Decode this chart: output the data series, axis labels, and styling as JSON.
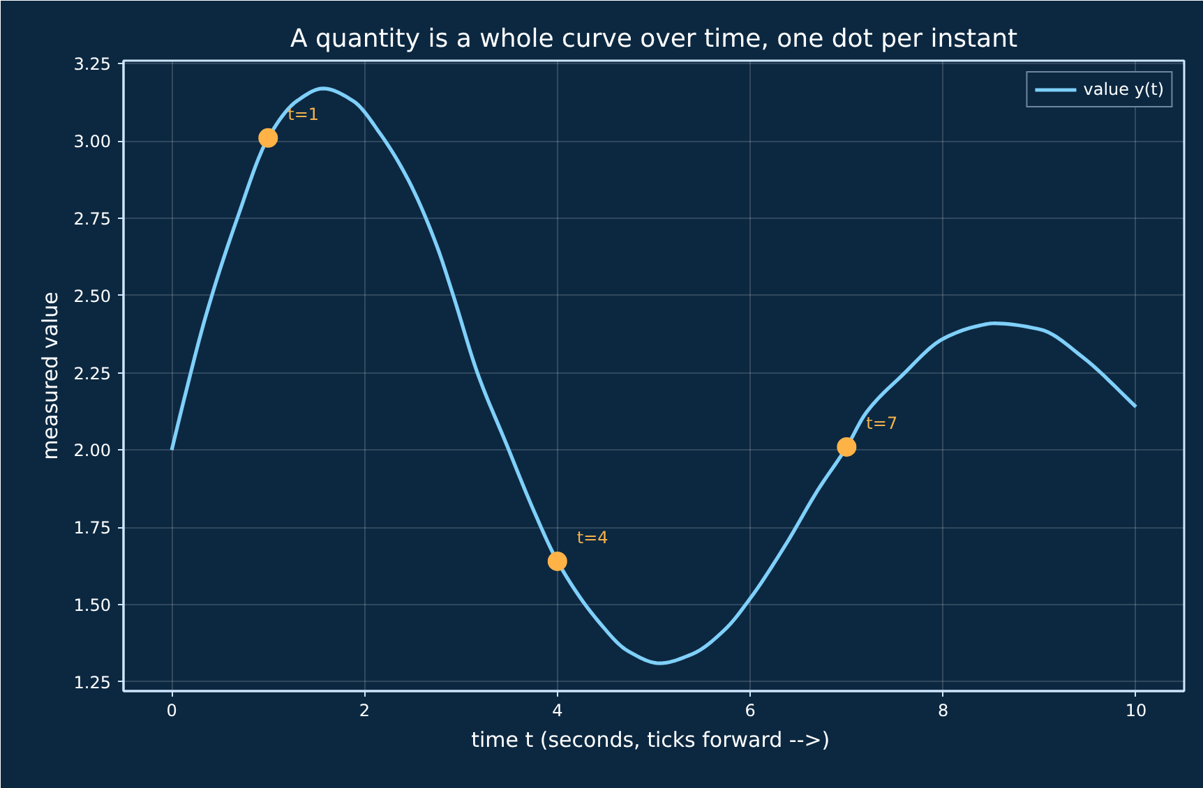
{
  "chart_data": {
    "type": "line",
    "title": "A quantity is a whole curve over time, one dot per instant",
    "xlabel": "time t  (seconds, ticks forward -->)",
    "ylabel": "measured value",
    "xlim": [
      -0.5,
      10.5
    ],
    "ylim": [
      1.22,
      3.26
    ],
    "xticks": [
      0,
      2,
      4,
      6,
      8,
      10
    ],
    "yticks": [
      1.25,
      {
        "value": 1.5,
        "label": "1.50"
      },
      1.75,
      {
        "value": 2.0,
        "label": "2.00"
      },
      2.25,
      {
        "value": 2.5,
        "label": "2.50"
      },
      2.75,
      {
        "value": 3.0,
        "label": "3.00"
      },
      3.25
    ],
    "series": [
      {
        "name": "value y(t)",
        "color": "#7fd0fa",
        "x": [
          0,
          0.125,
          0.35,
          0.68,
          1.0,
          1.3,
          1.57,
          1.88,
          2.17,
          2.46,
          2.75,
          2.92,
          3.17,
          3.47,
          3.76,
          4.0,
          4.44,
          4.73,
          5.06,
          5.4,
          5.74,
          6.0,
          6.36,
          6.7,
          7.0,
          7.2,
          7.57,
          8.0,
          8.34,
          8.53,
          9.01,
          9.45,
          10.0
        ],
        "values": [
          2.0,
          2.16,
          2.43,
          2.75,
          3.01,
          3.13,
          3.17,
          3.13,
          3.02,
          2.87,
          2.66,
          2.5,
          2.25,
          2.02,
          1.8,
          1.64,
          1.44,
          1.35,
          1.31,
          1.34,
          1.42,
          1.52,
          1.69,
          1.87,
          2.01,
          2.12,
          2.24,
          2.36,
          2.4,
          2.41,
          2.39,
          2.3,
          2.14
        ]
      },
      {
        "type": "scatter",
        "marker": "circle",
        "color": "#ffb347",
        "x": [
          1,
          4,
          7
        ],
        "values": [
          3.01,
          1.64,
          2.01
        ]
      }
    ],
    "annotations": [
      {
        "text": "t=1",
        "x": 1,
        "y": 3.01
      },
      {
        "text": "t=4",
        "x": 4,
        "y": 1.64
      },
      {
        "text": "t=7",
        "x": 7,
        "y": 2.01
      }
    ],
    "grid": true,
    "legend": "top right"
  }
}
